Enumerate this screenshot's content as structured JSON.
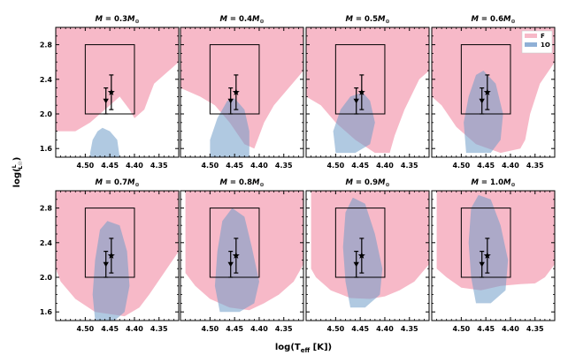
{
  "chart_data": {
    "type": "scatter",
    "layout": "2x4 grid of panels",
    "xlabel": "log(T",
    "xlabel_sub": "eff",
    "xlabel_suffix": " [K])",
    "ylabel": "log(L/L☉)",
    "ylabel_main": "log(",
    "ylabel_frac_num": "L",
    "ylabel_frac_den": "L☉",
    "ylabel_close": ")",
    "xlim": [
      4.56,
      4.31
    ],
    "ylim": [
      1.5,
      3.0
    ],
    "xticks": [
      4.5,
      4.45,
      4.4,
      4.35
    ],
    "xtick_labels": [
      "4.50",
      "4.45",
      "4.40",
      "4.35"
    ],
    "yticks": [
      1.6,
      2.0,
      2.4,
      2.8
    ],
    "ytick_labels": [
      "1.6",
      "2.0",
      "2.4",
      "2.8"
    ],
    "legend": {
      "placement": "top-right of last top panel",
      "entries": [
        {
          "label": "F",
          "color": "#f7b9c8"
        },
        {
          "label": "1O",
          "color": "#8fb0d6"
        }
      ]
    },
    "colors": {
      "F": "#f7b9c8",
      "1O": "#8fb0d6",
      "overlap": "#b7a8cd",
      "points": "#000000"
    },
    "box": {
      "x": [
        4.5,
        4.4
      ],
      "y": [
        2.0,
        2.8
      ]
    },
    "stars": [
      {
        "marker": "triangle-down",
        "logT": 4.458,
        "logL": 2.15,
        "xerr": 0.0,
        "yerr": 0.15
      },
      {
        "marker": "star",
        "logT": 4.447,
        "logL": 2.25,
        "xerr": 0.0,
        "yerr": 0.2
      }
    ],
    "panels": [
      {
        "title_prefix": "M = ",
        "mass": "0.3",
        "title_suffix": "M",
        "sub": "⊙",
        "F_region": [
          [
            4.56,
            3.0
          ],
          [
            4.31,
            3.0
          ],
          [
            4.31,
            2.6
          ],
          [
            4.33,
            2.5
          ],
          [
            4.36,
            2.35
          ],
          [
            4.37,
            2.2
          ],
          [
            4.38,
            2.05
          ],
          [
            4.4,
            1.95
          ],
          [
            4.41,
            2.05
          ],
          [
            4.43,
            2.2
          ],
          [
            4.46,
            2.05
          ],
          [
            4.49,
            1.9
          ],
          [
            4.52,
            1.8
          ],
          [
            4.56,
            1.8
          ]
        ],
        "O_region": [
          [
            4.49,
            1.55
          ],
          [
            4.485,
            1.7
          ],
          [
            4.475,
            1.8
          ],
          [
            4.465,
            1.84
          ],
          [
            4.45,
            1.8
          ],
          [
            4.435,
            1.7
          ],
          [
            4.43,
            1.5
          ],
          [
            4.49,
            1.5
          ]
        ]
      },
      {
        "title_prefix": "M = ",
        "mass": "0.4",
        "title_suffix": "M",
        "sub": "⊙",
        "F_region": [
          [
            4.56,
            3.0
          ],
          [
            4.31,
            3.0
          ],
          [
            4.31,
            2.5
          ],
          [
            4.34,
            2.3
          ],
          [
            4.37,
            2.1
          ],
          [
            4.39,
            1.9
          ],
          [
            4.4,
            1.75
          ],
          [
            4.41,
            1.6
          ],
          [
            4.43,
            1.65
          ],
          [
            4.46,
            1.9
          ],
          [
            4.49,
            2.1
          ],
          [
            4.52,
            2.2
          ],
          [
            4.56,
            2.3
          ]
        ],
        "O_region": [
          [
            4.5,
            1.5
          ],
          [
            4.5,
            1.7
          ],
          [
            4.485,
            1.95
          ],
          [
            4.465,
            2.15
          ],
          [
            4.45,
            2.18
          ],
          [
            4.43,
            2.05
          ],
          [
            4.42,
            1.8
          ],
          [
            4.42,
            1.5
          ]
        ]
      },
      {
        "title_prefix": "M = ",
        "mass": "0.5",
        "title_suffix": "M",
        "sub": "⊙",
        "F_region": [
          [
            4.56,
            3.0
          ],
          [
            4.31,
            3.0
          ],
          [
            4.31,
            2.5
          ],
          [
            4.33,
            2.4
          ],
          [
            4.36,
            2.05
          ],
          [
            4.38,
            1.75
          ],
          [
            4.39,
            1.55
          ],
          [
            4.42,
            1.55
          ],
          [
            4.46,
            1.7
          ],
          [
            4.5,
            1.9
          ],
          [
            4.53,
            2.1
          ],
          [
            4.56,
            2.2
          ]
        ],
        "O_region": [
          [
            4.5,
            1.55
          ],
          [
            4.505,
            1.8
          ],
          [
            4.49,
            2.05
          ],
          [
            4.47,
            2.2
          ],
          [
            4.445,
            2.25
          ],
          [
            4.43,
            2.15
          ],
          [
            4.42,
            1.9
          ],
          [
            4.43,
            1.65
          ],
          [
            4.46,
            1.55
          ]
        ]
      },
      {
        "title_prefix": "M = ",
        "mass": "0.6",
        "title_suffix": "M",
        "sub": "⊙",
        "F_region": [
          [
            4.56,
            3.0
          ],
          [
            4.31,
            3.0
          ],
          [
            4.31,
            2.6
          ],
          [
            4.34,
            2.35
          ],
          [
            4.36,
            2.0
          ],
          [
            4.37,
            1.7
          ],
          [
            4.38,
            1.6
          ],
          [
            4.42,
            1.55
          ],
          [
            4.47,
            1.65
          ],
          [
            4.51,
            1.85
          ],
          [
            4.54,
            2.1
          ],
          [
            4.56,
            2.2
          ]
        ],
        "O_region": [
          [
            4.49,
            1.55
          ],
          [
            4.495,
            1.9
          ],
          [
            4.485,
            2.2
          ],
          [
            4.47,
            2.45
          ],
          [
            4.455,
            2.5
          ],
          [
            4.43,
            2.35
          ],
          [
            4.415,
            2.0
          ],
          [
            4.42,
            1.7
          ],
          [
            4.44,
            1.55
          ]
        ]
      },
      {
        "title_prefix": "M = ",
        "mass": "0.7",
        "title_suffix": "M",
        "sub": "⊙",
        "F_region": [
          [
            4.56,
            3.0
          ],
          [
            4.31,
            3.0
          ],
          [
            4.31,
            2.3
          ],
          [
            4.34,
            2.05
          ],
          [
            4.37,
            1.8
          ],
          [
            4.39,
            1.65
          ],
          [
            4.42,
            1.55
          ],
          [
            4.48,
            1.6
          ],
          [
            4.52,
            1.75
          ],
          [
            4.55,
            1.95
          ],
          [
            4.56,
            2.1
          ]
        ],
        "O_region": [
          [
            4.48,
            1.5
          ],
          [
            4.485,
            1.8
          ],
          [
            4.48,
            2.2
          ],
          [
            4.47,
            2.55
          ],
          [
            4.455,
            2.65
          ],
          [
            4.43,
            2.6
          ],
          [
            4.415,
            2.3
          ],
          [
            4.41,
            1.9
          ],
          [
            4.42,
            1.6
          ],
          [
            4.44,
            1.5
          ]
        ]
      },
      {
        "title_prefix": "M = ",
        "mass": "0.8",
        "title_suffix": "M",
        "sub": "⊙",
        "F_region": [
          [
            4.55,
            3.0
          ],
          [
            4.31,
            3.0
          ],
          [
            4.31,
            2.15
          ],
          [
            4.33,
            1.95
          ],
          [
            4.36,
            1.8
          ],
          [
            4.39,
            1.7
          ],
          [
            4.42,
            1.62
          ],
          [
            4.46,
            1.65
          ],
          [
            4.5,
            1.75
          ],
          [
            4.53,
            1.9
          ],
          [
            4.55,
            2.05
          ]
        ],
        "O_region": [
          [
            4.48,
            1.6
          ],
          [
            4.49,
            1.9
          ],
          [
            4.485,
            2.3
          ],
          [
            4.475,
            2.65
          ],
          [
            4.455,
            2.8
          ],
          [
            4.43,
            2.7
          ],
          [
            4.415,
            2.35
          ],
          [
            4.4,
            1.95
          ],
          [
            4.41,
            1.7
          ],
          [
            4.44,
            1.6
          ]
        ]
      },
      {
        "title_prefix": "M = ",
        "mass": "0.9",
        "title_suffix": "M",
        "sub": "⊙",
        "F_region": [
          [
            4.55,
            3.0
          ],
          [
            4.31,
            3.0
          ],
          [
            4.31,
            2.15
          ],
          [
            4.34,
            1.95
          ],
          [
            4.37,
            1.85
          ],
          [
            4.4,
            1.78
          ],
          [
            4.43,
            1.75
          ],
          [
            4.47,
            1.76
          ],
          [
            4.51,
            1.85
          ],
          [
            4.54,
            2.0
          ],
          [
            4.55,
            2.1
          ]
        ],
        "O_region": [
          [
            4.47,
            1.65
          ],
          [
            4.48,
            1.95
          ],
          [
            4.485,
            2.35
          ],
          [
            4.48,
            2.75
          ],
          [
            4.465,
            2.92
          ],
          [
            4.44,
            2.85
          ],
          [
            4.42,
            2.5
          ],
          [
            4.405,
            2.1
          ],
          [
            4.41,
            1.8
          ],
          [
            4.44,
            1.65
          ]
        ]
      },
      {
        "title_prefix": "M = ",
        "mass": "1.0",
        "title_suffix": "M",
        "sub": "⊙",
        "F_region": [
          [
            4.55,
            3.0
          ],
          [
            4.31,
            3.0
          ],
          [
            4.31,
            2.15
          ],
          [
            4.33,
            2.0
          ],
          [
            4.35,
            1.93
          ],
          [
            4.38,
            1.92
          ],
          [
            4.42,
            1.9
          ],
          [
            4.46,
            1.85
          ],
          [
            4.5,
            1.88
          ],
          [
            4.53,
            2.0
          ],
          [
            4.55,
            2.1
          ]
        ],
        "O_region": [
          [
            4.47,
            1.7
          ],
          [
            4.48,
            2.0
          ],
          [
            4.485,
            2.4
          ],
          [
            4.48,
            2.8
          ],
          [
            4.465,
            2.95
          ],
          [
            4.44,
            2.9
          ],
          [
            4.42,
            2.6
          ],
          [
            4.405,
            2.2
          ],
          [
            4.41,
            1.85
          ],
          [
            4.44,
            1.7
          ]
        ]
      }
    ]
  }
}
